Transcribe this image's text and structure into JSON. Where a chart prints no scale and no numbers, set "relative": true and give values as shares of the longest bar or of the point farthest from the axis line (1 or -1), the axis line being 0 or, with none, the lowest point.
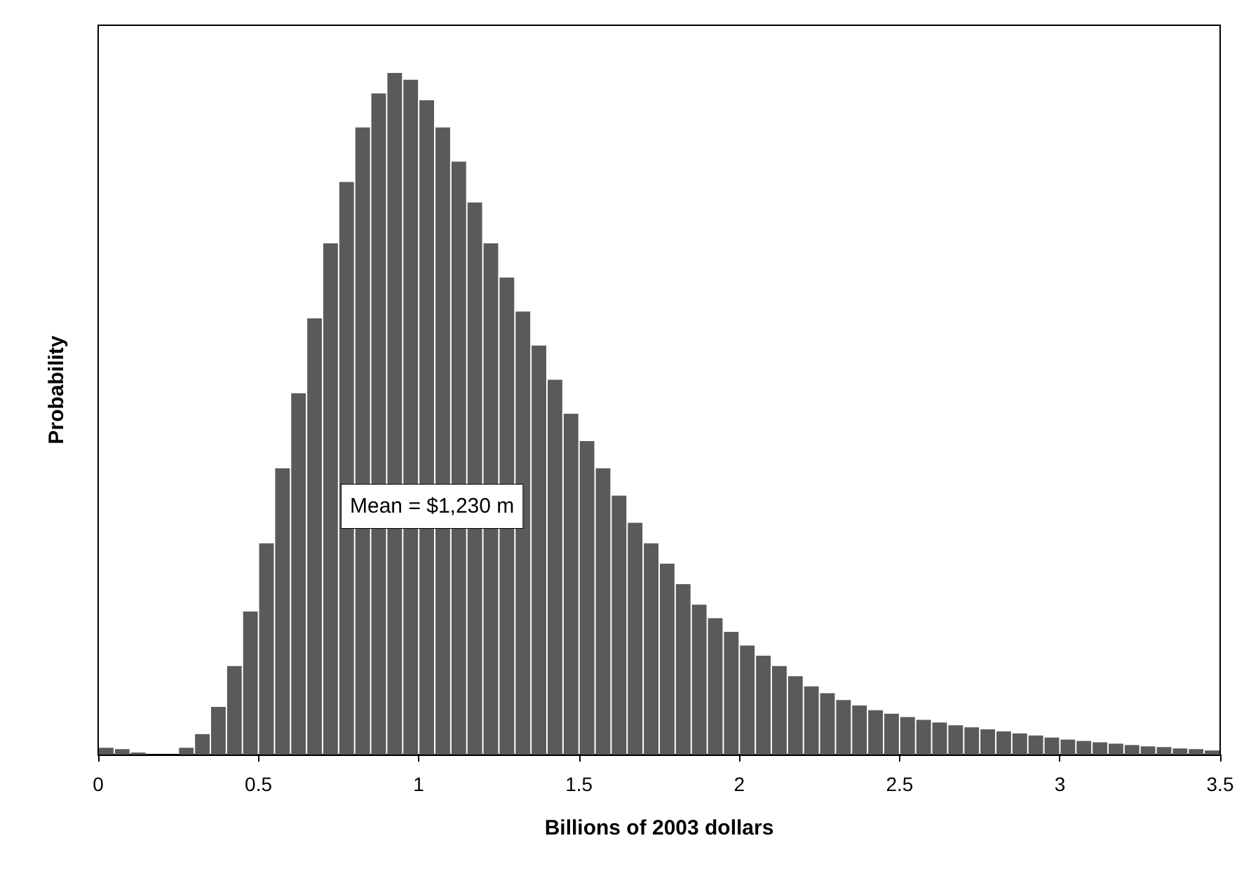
{
  "chart_data": {
    "type": "bar",
    "relative": true,
    "xlabel": "Billions of 2003 dollars",
    "ylabel": "Probability",
    "annotations": [
      "Mean = $1,230 m"
    ],
    "xlim": [
      0,
      3.5
    ],
    "xticks": [
      0,
      0.5,
      1,
      1.5,
      2,
      2.5,
      3,
      3.5
    ],
    "grid": false,
    "color": "#5a5a5a",
    "x": [
      0.025,
      0.075,
      0.125,
      0.175,
      0.225,
      0.275,
      0.325,
      0.375,
      0.425,
      0.475,
      0.525,
      0.575,
      0.625,
      0.675,
      0.725,
      0.775,
      0.825,
      0.875,
      0.925,
      0.975,
      1.025,
      1.075,
      1.125,
      1.175,
      1.225,
      1.275,
      1.325,
      1.375,
      1.425,
      1.475,
      1.525,
      1.575,
      1.625,
      1.675,
      1.725,
      1.775,
      1.825,
      1.875,
      1.925,
      1.975,
      2.025,
      2.075,
      2.125,
      2.175,
      2.225,
      2.275,
      2.325,
      2.375,
      2.425,
      2.475,
      2.525,
      2.575,
      2.625,
      2.675,
      2.725,
      2.775,
      2.825,
      2.875,
      2.925,
      2.975,
      3.025,
      3.075,
      3.125,
      3.175,
      3.225,
      3.275,
      3.325,
      3.375,
      3.425,
      3.475
    ],
    "values": [
      0.01,
      0.008,
      0.003,
      0,
      0,
      0.01,
      0.03,
      0.07,
      0.13,
      0.21,
      0.31,
      0.42,
      0.53,
      0.64,
      0.75,
      0.84,
      0.92,
      0.97,
      1,
      0.99,
      0.96,
      0.92,
      0.87,
      0.81,
      0.75,
      0.7,
      0.65,
      0.6,
      0.55,
      0.5,
      0.46,
      0.42,
      0.38,
      0.34,
      0.31,
      0.28,
      0.25,
      0.22,
      0.2,
      0.18,
      0.16,
      0.145,
      0.13,
      0.115,
      0.1,
      0.09,
      0.08,
      0.072,
      0.065,
      0.06,
      0.055,
      0.051,
      0.047,
      0.043,
      0.04,
      0.037,
      0.034,
      0.031,
      0.028,
      0.025,
      0.022,
      0.02,
      0.018,
      0.016,
      0.014,
      0.012,
      0.011,
      0.009,
      0.008,
      0.006
    ]
  }
}
